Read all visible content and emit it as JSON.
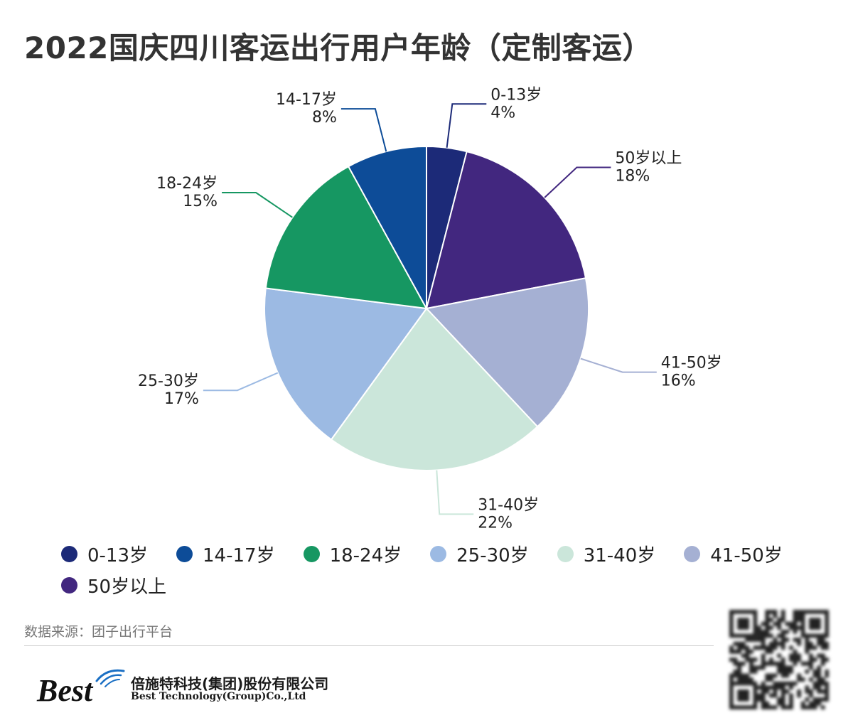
{
  "title": "2022国庆四川客运出行用户年龄（定制客运）",
  "chart_data": {
    "type": "pie",
    "title": "2022国庆四川客运出行用户年龄（定制客运）",
    "unit": "%",
    "slices": [
      {
        "label": "0-13岁",
        "value": 4,
        "value_label": "4%",
        "color": "#1c2a78"
      },
      {
        "label": "50岁以上",
        "value": 18,
        "value_label": "18%",
        "color": "#42277f"
      },
      {
        "label": "41-50岁",
        "value": 16,
        "value_label": "16%",
        "color": "#a5b0d3"
      },
      {
        "label": "31-40岁",
        "value": 22,
        "value_label": "22%",
        "color": "#cbe6da"
      },
      {
        "label": "25-30岁",
        "value": 17,
        "value_label": "17%",
        "color": "#9cbae3"
      },
      {
        "label": "18-24岁",
        "value": 15,
        "value_label": "15%",
        "color": "#169762"
      },
      {
        "label": "14-17岁",
        "value": 8,
        "value_label": "8%",
        "color": "#0d4c98"
      }
    ],
    "legend": {
      "position": "bottom",
      "items": [
        {
          "label": "0-13岁",
          "color": "#1c2a78"
        },
        {
          "label": "14-17岁",
          "color": "#0d4c98"
        },
        {
          "label": "18-24岁",
          "color": "#169762"
        },
        {
          "label": "25-30岁",
          "color": "#9cbae3"
        },
        {
          "label": "31-40岁",
          "color": "#cbe6da"
        },
        {
          "label": "41-50岁",
          "color": "#a5b0d3"
        },
        {
          "label": "50岁以上",
          "color": "#42277f"
        }
      ]
    }
  },
  "source_text": "数据来源：团子出行平台",
  "brand": {
    "logo_text": "Best",
    "name_cn": "倍施特科技(集团)股份有限公司",
    "name_en": "Best Technology(Group)Co.,Ltd"
  }
}
